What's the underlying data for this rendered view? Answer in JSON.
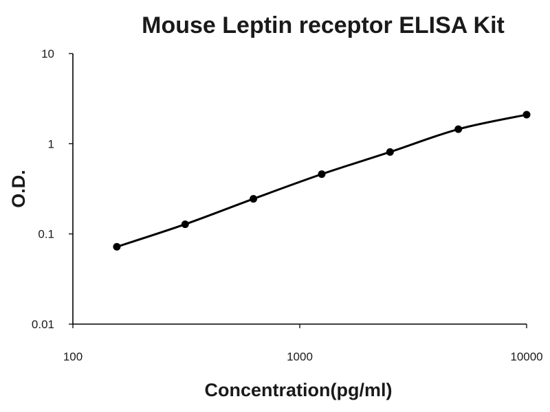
{
  "chart_data": {
    "type": "scatter",
    "title": "Mouse Leptin receptor ELISA Kit",
    "xlabel": "Concentration(pg/ml)",
    "ylabel": "O.D.",
    "x_scale": "log",
    "y_scale": "log",
    "xlim": [
      100,
      10000
    ],
    "ylim": [
      0.01,
      10
    ],
    "x_ticks": [
      "100",
      "1000",
      "10000"
    ],
    "y_ticks": [
      "0.01",
      "0.1",
      "1",
      "10"
    ],
    "grid": false,
    "legend": "none",
    "series": [
      {
        "x": [
          156.25,
          312.5,
          625,
          1250,
          2500,
          5000,
          10000
        ],
        "y": [
          0.072,
          0.128,
          0.245,
          0.46,
          0.81,
          1.45,
          2.1
        ]
      }
    ],
    "colors": {
      "series": "#000000",
      "axis": "#000000",
      "text": "#1a1a1a"
    }
  }
}
